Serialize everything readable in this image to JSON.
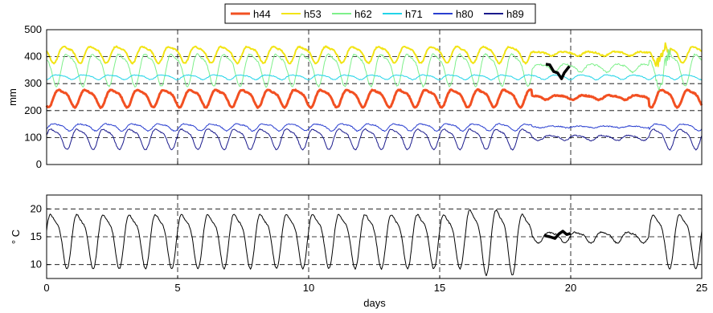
{
  "chart_data": [
    {
      "type": "line",
      "ylabel": "mm",
      "xlabel": "",
      "xlim": [
        0,
        25
      ],
      "ylim": [
        0,
        500
      ],
      "xticks": [
        0,
        5,
        10,
        15,
        20,
        25
      ],
      "yticks": [
        0,
        100,
        200,
        300,
        400,
        500
      ],
      "grid": true,
      "legend": "top-center",
      "series": [
        {
          "name": "h44",
          "color": "#f25022",
          "base": 250,
          "amp": 30,
          "noise": 4,
          "phase": 0.3,
          "damp": true
        },
        {
          "name": "h53",
          "color": "#f2e416",
          "base": 412,
          "amp": 28,
          "noise": 5,
          "phase": 0.5,
          "damp": true,
          "burst": true
        },
        {
          "name": "h62",
          "color": "#7ef08a",
          "base": 360,
          "amp": 55,
          "noise": 6,
          "phase": 0.6,
          "damp": true,
          "burst": true
        },
        {
          "name": "h71",
          "color": "#22d4e8",
          "base": 325,
          "amp": 8,
          "noise": 3,
          "phase": 0.2,
          "damp": false
        },
        {
          "name": "h80",
          "color": "#2a3fd0",
          "base": 140,
          "amp": 12,
          "noise": 4,
          "phase": 0.1,
          "damp": true
        },
        {
          "name": "h89",
          "color": "#1a1a8c",
          "base": 100,
          "amp": 35,
          "noise": 4,
          "phase": 0.0,
          "damp": true
        }
      ],
      "highlight": {
        "color": "#000000",
        "x": [
          19.05,
          19.2,
          19.35,
          19.5,
          19.65,
          19.75,
          19.85,
          19.95
        ],
        "y": [
          372,
          370,
          345,
          340,
          318,
          340,
          352,
          365
        ]
      }
    },
    {
      "type": "line",
      "ylabel": "° C",
      "xlabel": "days",
      "xlim": [
        0,
        25
      ],
      "ylim": [
        7.5,
        22.5
      ],
      "xticks": [
        0,
        5,
        10,
        15,
        20,
        25
      ],
      "yticks": [
        10,
        15,
        20
      ],
      "grid": true,
      "series": [
        {
          "name": "",
          "color": "#000000",
          "base": 15,
          "amp": 4.5,
          "noise": 0.25
        }
      ],
      "highlight": {
        "color": "#000000",
        "x": [
          19.0,
          19.2,
          19.4,
          19.55,
          19.7,
          19.85,
          20.0
        ],
        "y": [
          15.2,
          15.0,
          14.7,
          15.5,
          16.0,
          15.4,
          15.6
        ]
      }
    }
  ]
}
